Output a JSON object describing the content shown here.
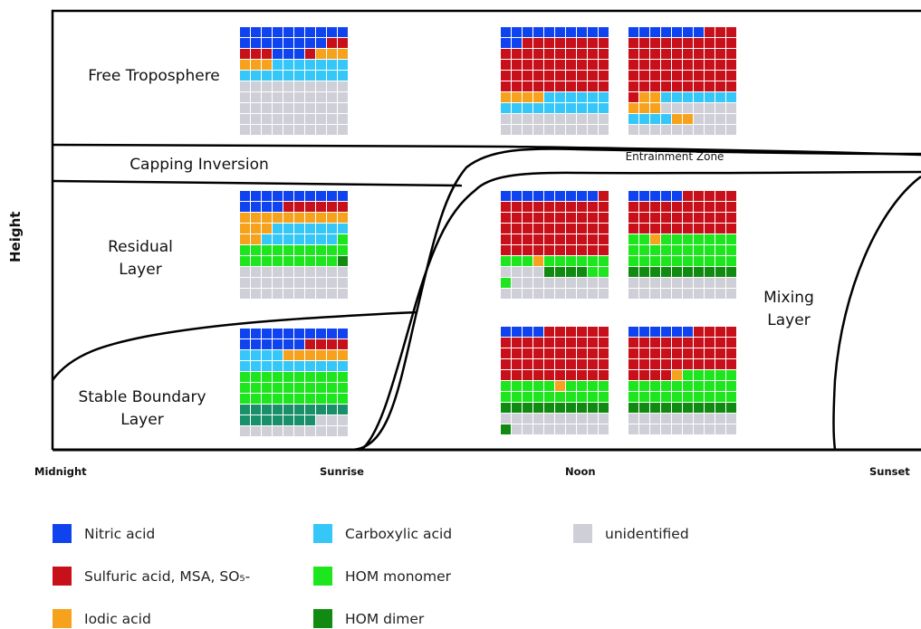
{
  "colors": {
    "nitric": "#1043f0",
    "sulfuric": "#c8101a",
    "iodic": "#f7a21c",
    "carboxylic": "#35c7f7",
    "hom_monomer": "#1ee61e",
    "hom_dimer": "#118a11",
    "hom_dimer_alt": "#19906a",
    "unidentified": "#cfcfd8"
  },
  "axis": {
    "y_label": "Height"
  },
  "time_labels": {
    "midnight": "Midnight",
    "sunrise": "Sunrise",
    "noon": "Noon",
    "sunset": "Sunset"
  },
  "layers": {
    "free_troposphere": "Free Troposphere",
    "capping_inversion": "Capping Inversion",
    "entrainment_zone": "Entrainment Zone",
    "residual_layer": [
      "Residual",
      "Layer"
    ],
    "stable_boundary_layer": [
      "Stable Boundary",
      "Layer"
    ],
    "mixing_layer": [
      "Mixing",
      "Layer"
    ]
  },
  "legend": [
    {
      "key": "nitric",
      "label": "Nitric acid"
    },
    {
      "key": "sulfuric",
      "label": "Sulfuric acid, MSA, SO₅-"
    },
    {
      "key": "iodic",
      "label": "Iodic acid"
    },
    {
      "key": "carboxylic",
      "label": "Carboxylic acid"
    },
    {
      "key": "hom_monomer",
      "label": "HOM monomer"
    },
    {
      "key": "hom_dimer",
      "label": "HOM dimer"
    },
    {
      "key": "unidentified",
      "label": "unidentified"
    }
  ],
  "waffles": [
    {
      "id": "night-free-troposphere",
      "counts": [
        [
          "nitric",
          18
        ],
        [
          "sulfuric",
          5
        ],
        [
          "nitric",
          3
        ],
        [
          "sulfuric",
          1
        ],
        [
          "iodic",
          6
        ],
        [
          "carboxylic",
          17
        ],
        [
          "unidentified",
          50
        ]
      ]
    },
    {
      "id": "sunrise-free-troposphere",
      "counts": [
        [
          "nitric",
          12
        ],
        [
          "sulfuric",
          8
        ],
        [
          "sulfuric",
          40
        ],
        [
          "iodic",
          4
        ],
        [
          "carboxylic",
          6
        ],
        [
          "carboxylic",
          10
        ],
        [
          "unidentified",
          20
        ]
      ]
    },
    {
      "id": "noon-free-troposphere",
      "counts": [
        [
          "nitric",
          7
        ],
        [
          "sulfuric",
          3
        ],
        [
          "sulfuric",
          51
        ],
        [
          "iodic",
          2
        ],
        [
          "carboxylic",
          7
        ],
        [
          "iodic",
          3
        ],
        [
          "unidentified",
          7
        ],
        [
          "carboxylic",
          4
        ],
        [
          "iodic",
          2
        ],
        [
          "unidentified",
          14
        ]
      ]
    },
    {
      "id": "night-residual",
      "counts": [
        [
          "nitric",
          14
        ],
        [
          "sulfuric",
          6
        ],
        [
          "iodic",
          13
        ],
        [
          "carboxylic",
          7
        ],
        [
          "iodic",
          2
        ],
        [
          "carboxylic",
          7
        ],
        [
          "hom_monomer",
          20
        ],
        [
          "hom_dimer",
          1
        ],
        [
          "unidentified",
          30
        ]
      ]
    },
    {
      "id": "sunrise-residual",
      "counts": [
        [
          "nitric",
          9
        ],
        [
          "sulfuric",
          51
        ],
        [
          "hom_monomer",
          3
        ],
        [
          "iodic",
          1
        ],
        [
          "hom_monomer",
          6
        ],
        [
          "unidentified",
          4
        ],
        [
          "hom_dimer",
          4
        ],
        [
          "hom_monomer",
          3
        ],
        [
          "unidentified",
          19
        ]
      ]
    },
    {
      "id": "noon-residual",
      "counts": [
        [
          "nitric",
          5
        ],
        [
          "sulfuric",
          35
        ],
        [
          "hom_monomer",
          2
        ],
        [
          "iodic",
          1
        ],
        [
          "hom_monomer",
          27
        ],
        [
          "hom_dimer",
          10
        ],
        [
          "unidentified",
          20
        ]
      ]
    },
    {
      "id": "night-stable",
      "counts": [
        [
          "nitric",
          16
        ],
        [
          "sulfuric",
          4
        ],
        [
          "carboxylic",
          4
        ],
        [
          "iodic",
          6
        ],
        [
          "carboxylic",
          10
        ],
        [
          "hom_monomer",
          30
        ],
        [
          "hom_dimer_alt",
          17
        ],
        [
          "unidentified",
          13
        ]
      ]
    },
    {
      "id": "sunrise-mixing",
      "counts": [
        [
          "nitric",
          4
        ],
        [
          "sulfuric",
          46
        ],
        [
          "hom_monomer",
          5
        ],
        [
          "iodic",
          1
        ],
        [
          "hom_monomer",
          14
        ],
        [
          "hom_dimer",
          10
        ],
        [
          "unidentified",
          10
        ],
        [
          "hom_dimer",
          1
        ],
        [
          "unidentified",
          9
        ]
      ]
    },
    {
      "id": "noon-mixing",
      "counts": [
        [
          "nitric",
          6
        ],
        [
          "sulfuric",
          38
        ],
        [
          "iodic",
          1
        ],
        [
          "hom_monomer",
          25
        ],
        [
          "hom_dimer",
          10
        ],
        [
          "unidentified",
          20
        ]
      ]
    }
  ]
}
